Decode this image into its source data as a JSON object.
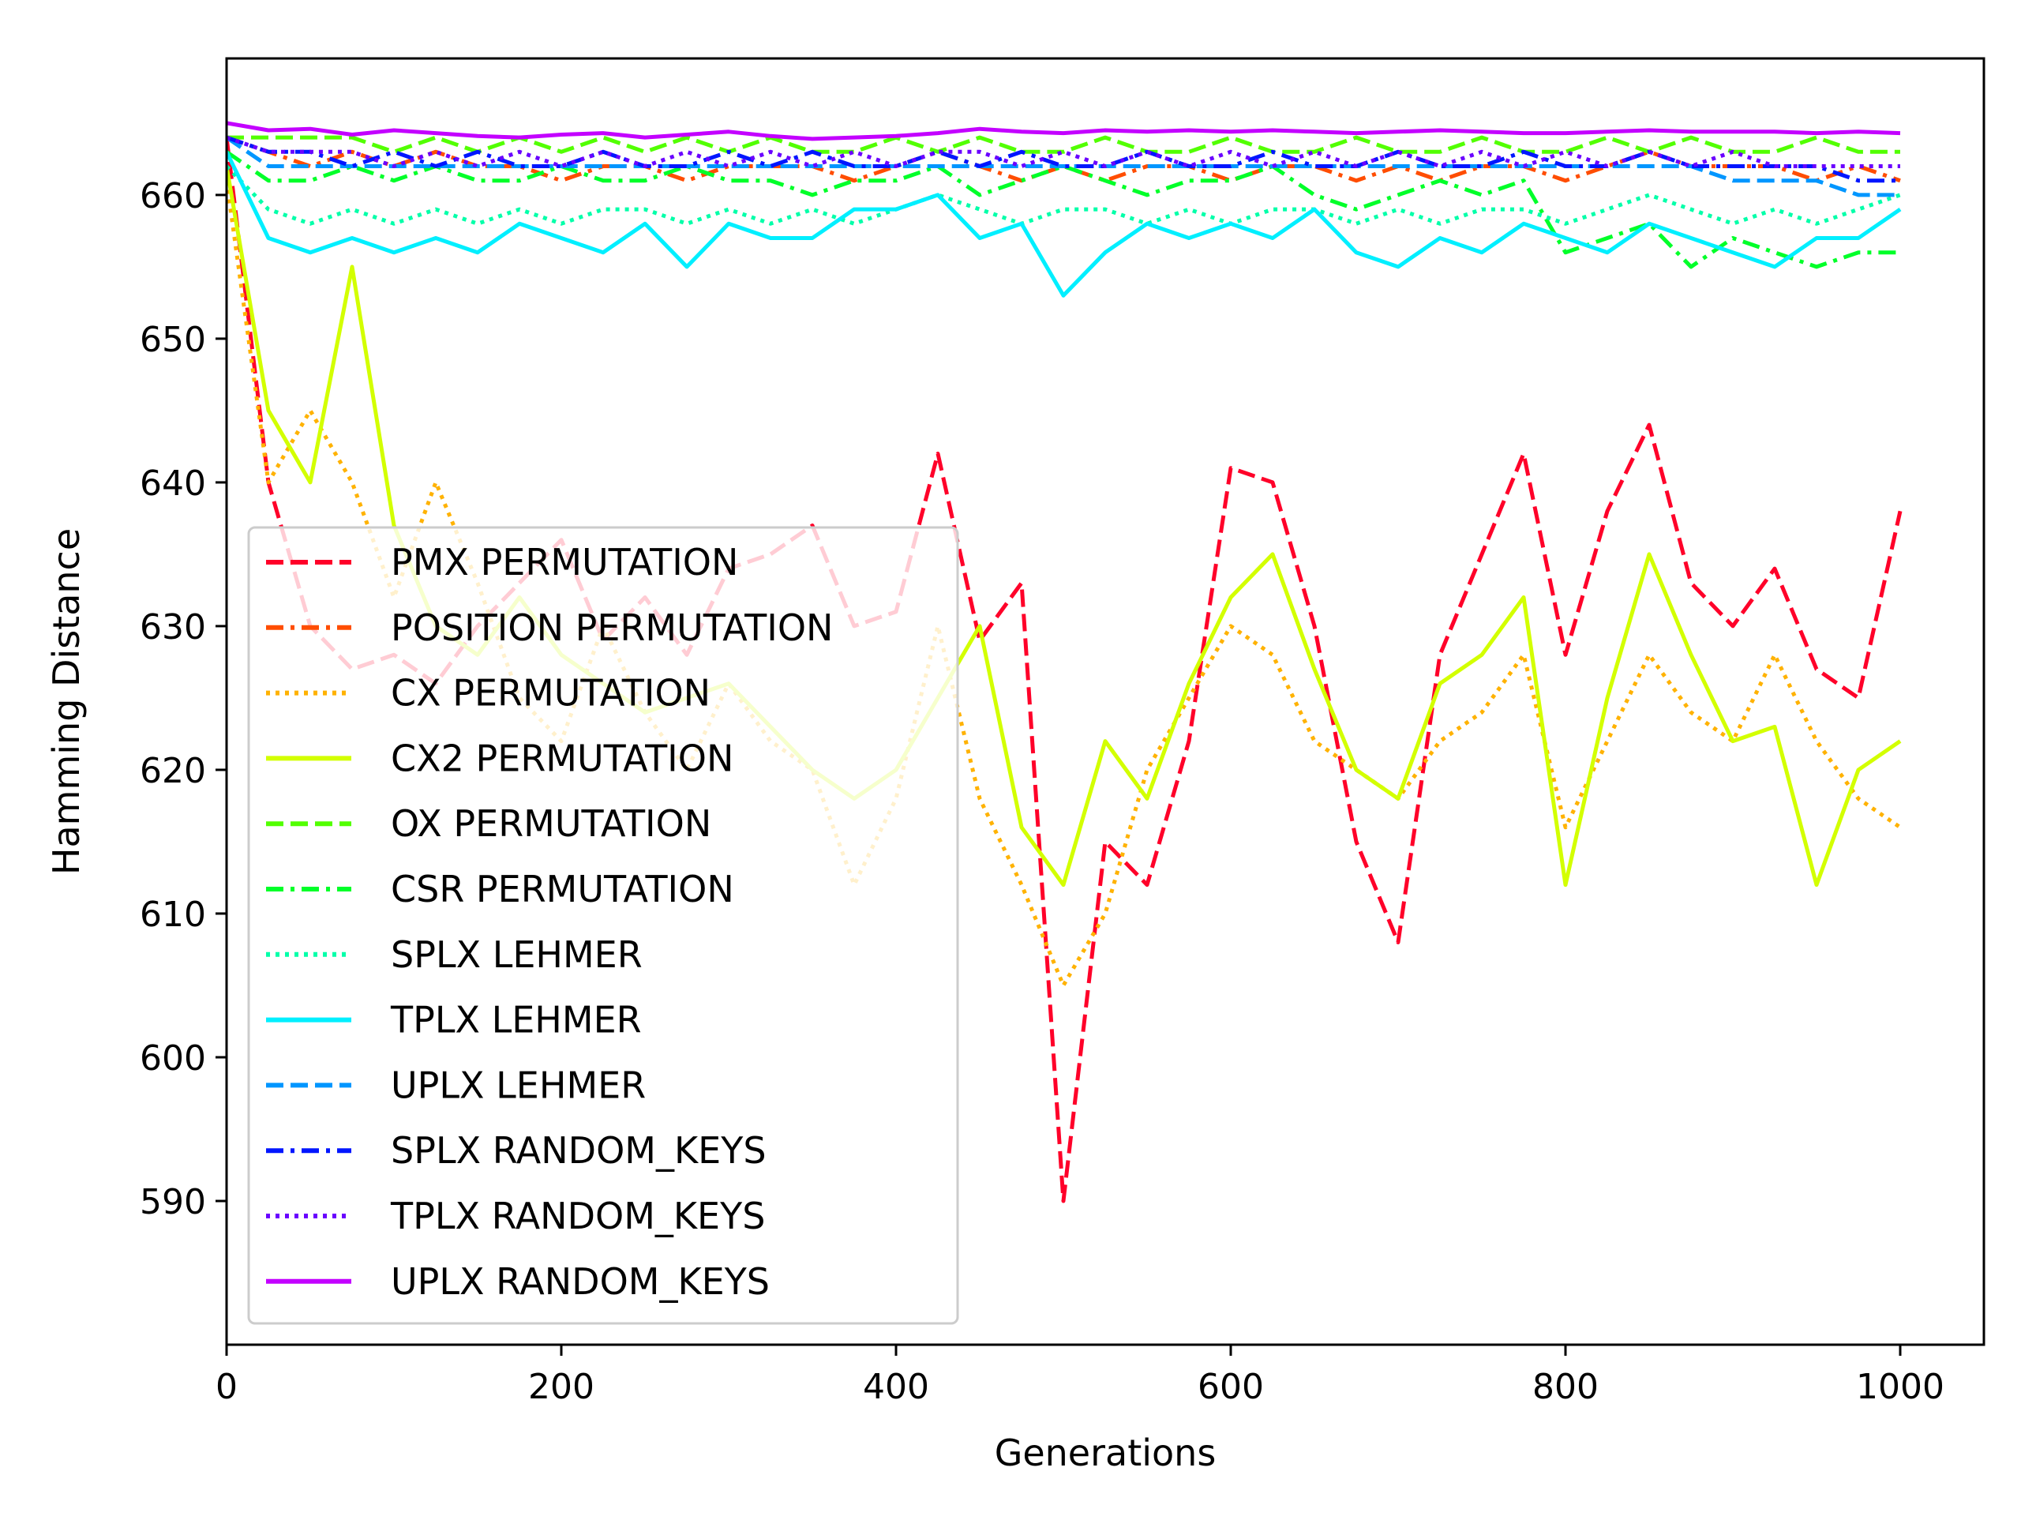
{
  "chart_data": {
    "type": "line",
    "title": "",
    "xlabel": "Generations",
    "ylabel": "Hamming Distance",
    "xlim": [
      0,
      1050
    ],
    "ylim": [
      580,
      669.5
    ],
    "xticks": [
      0,
      200,
      400,
      600,
      800,
      1000
    ],
    "yticks": [
      590,
      600,
      610,
      620,
      630,
      640,
      650,
      660
    ],
    "grid": false,
    "legend_position": "lower-left",
    "x": [
      0,
      25,
      50,
      75,
      100,
      125,
      150,
      175,
      200,
      225,
      250,
      275,
      300,
      325,
      350,
      375,
      400,
      425,
      450,
      475,
      500,
      525,
      550,
      575,
      600,
      625,
      650,
      675,
      700,
      725,
      750,
      775,
      800,
      825,
      850,
      875,
      900,
      925,
      950,
      975,
      1000
    ],
    "series": [
      {
        "name": "PMX PERMUTATION",
        "color": "#ff0029",
        "dash": "dashed",
        "values": [
          664,
          640,
          630,
          627,
          628,
          626,
          630,
          633,
          636,
          629,
          632,
          628,
          634,
          635,
          637,
          630,
          631,
          642,
          629,
          633,
          590,
          615,
          612,
          622,
          641,
          640,
          630,
          615,
          608,
          628,
          635,
          642,
          628,
          638,
          644,
          633,
          630,
          634,
          627,
          625,
          638
        ]
      },
      {
        "name": "POSITION PERMUTATION",
        "color": "#ff4d00",
        "dash": "dashdot",
        "values": [
          664,
          663,
          662,
          663,
          662,
          663,
          662,
          662,
          661,
          662,
          662,
          661,
          662,
          662,
          662,
          661,
          662,
          663,
          662,
          661,
          662,
          661,
          662,
          662,
          661,
          662,
          662,
          661,
          662,
          661,
          662,
          662,
          661,
          662,
          663,
          662,
          662,
          662,
          661,
          662,
          661
        ]
      },
      {
        "name": "CX PERMUTATION",
        "color": "#ffb200",
        "dash": "dotted",
        "values": [
          661,
          640,
          645,
          640,
          632,
          640,
          633,
          625,
          622,
          630,
          624,
          620,
          626,
          622,
          620,
          612,
          618,
          630,
          618,
          612,
          605,
          610,
          620,
          625,
          630,
          628,
          622,
          620,
          618,
          622,
          624,
          628,
          616,
          622,
          628,
          624,
          622,
          628,
          622,
          618,
          616
        ]
      },
      {
        "name": "CX2 PERMUTATION",
        "color": "#d3ff00",
        "dash": "solid",
        "values": [
          662,
          645,
          640,
          655,
          637,
          630,
          628,
          632,
          628,
          626,
          624,
          625,
          626,
          623,
          620,
          618,
          620,
          625,
          630,
          616,
          612,
          622,
          618,
          626,
          632,
          635,
          627,
          620,
          618,
          626,
          628,
          632,
          612,
          625,
          635,
          628,
          622,
          623,
          612,
          620,
          622
        ]
      },
      {
        "name": "OX PERMUTATION",
        "color": "#52ff00",
        "dash": "dashed",
        "values": [
          664,
          664,
          664,
          664,
          663,
          664,
          663,
          664,
          663,
          664,
          663,
          664,
          663,
          664,
          663,
          663,
          664,
          663,
          664,
          663,
          663,
          664,
          663,
          663,
          664,
          663,
          663,
          664,
          663,
          663,
          664,
          663,
          663,
          664,
          663,
          664,
          663,
          663,
          664,
          663,
          663
        ]
      },
      {
        "name": "CSR PERMUTATION",
        "color": "#00ff29",
        "dash": "dashdot",
        "values": [
          663,
          661,
          661,
          662,
          661,
          662,
          661,
          661,
          662,
          661,
          661,
          662,
          661,
          661,
          660,
          661,
          661,
          662,
          660,
          661,
          662,
          661,
          660,
          661,
          661,
          662,
          660,
          659,
          660,
          661,
          660,
          661,
          656,
          657,
          658,
          655,
          657,
          656,
          655,
          656,
          656
        ]
      },
      {
        "name": "SPLX LEHMER",
        "color": "#00ffa9",
        "dash": "dotted",
        "values": [
          662,
          659,
          658,
          659,
          658,
          659,
          658,
          659,
          658,
          659,
          659,
          658,
          659,
          658,
          659,
          658,
          659,
          660,
          659,
          658,
          659,
          659,
          658,
          659,
          658,
          659,
          659,
          658,
          659,
          658,
          659,
          659,
          658,
          659,
          660,
          659,
          658,
          659,
          658,
          659,
          660
        ]
      },
      {
        "name": "TPLX LEHMER",
        "color": "#00efff",
        "dash": "solid",
        "values": [
          663,
          657,
          656,
          657,
          656,
          657,
          656,
          658,
          657,
          656,
          658,
          655,
          658,
          657,
          657,
          659,
          659,
          660,
          657,
          658,
          653,
          656,
          658,
          657,
          658,
          657,
          659,
          656,
          655,
          657,
          656,
          658,
          657,
          656,
          658,
          657,
          656,
          655,
          657,
          657,
          659
        ]
      },
      {
        "name": "UPLX LEHMER",
        "color": "#0096ff",
        "dash": "dashed",
        "values": [
          664,
          662,
          662,
          662,
          662,
          662,
          662,
          662,
          662,
          662,
          662,
          662,
          662,
          662,
          662,
          662,
          662,
          662,
          662,
          662,
          662,
          662,
          662,
          662,
          662,
          662,
          662,
          662,
          662,
          662,
          662,
          662,
          662,
          662,
          662,
          662,
          661,
          661,
          661,
          660,
          660
        ]
      },
      {
        "name": "SPLX RANDOM_KEYS",
        "color": "#0016ff",
        "dash": "dashdot",
        "values": [
          664,
          663,
          663,
          662,
          663,
          662,
          663,
          662,
          662,
          663,
          662,
          662,
          663,
          662,
          663,
          662,
          662,
          663,
          662,
          663,
          662,
          662,
          663,
          662,
          662,
          663,
          662,
          662,
          663,
          662,
          662,
          663,
          662,
          662,
          663,
          662,
          662,
          662,
          662,
          661,
          661
        ]
      },
      {
        "name": "TPLX RANDOM_KEYS",
        "color": "#6a00ff",
        "dash": "dotted",
        "values": [
          664,
          663,
          663,
          663,
          662,
          663,
          662,
          663,
          662,
          663,
          662,
          663,
          662,
          663,
          662,
          663,
          662,
          663,
          663,
          662,
          663,
          662,
          663,
          662,
          663,
          662,
          663,
          662,
          663,
          662,
          663,
          662,
          663,
          662,
          663,
          662,
          663,
          662,
          662,
          662,
          662
        ]
      },
      {
        "name": "UPLX RANDOM_KEYS",
        "color": "#c300ff",
        "dash": "solid",
        "values": [
          665,
          664.5,
          664.6,
          664.2,
          664.5,
          664.3,
          664.1,
          664.0,
          664.2,
          664.3,
          664.0,
          664.2,
          664.4,
          664.1,
          663.9,
          664.0,
          664.1,
          664.3,
          664.6,
          664.4,
          664.3,
          664.5,
          664.4,
          664.5,
          664.4,
          664.5,
          664.4,
          664.3,
          664.4,
          664.5,
          664.4,
          664.3,
          664.3,
          664.4,
          664.5,
          664.4,
          664.4,
          664.4,
          664.3,
          664.4,
          664.3
        ]
      }
    ]
  }
}
